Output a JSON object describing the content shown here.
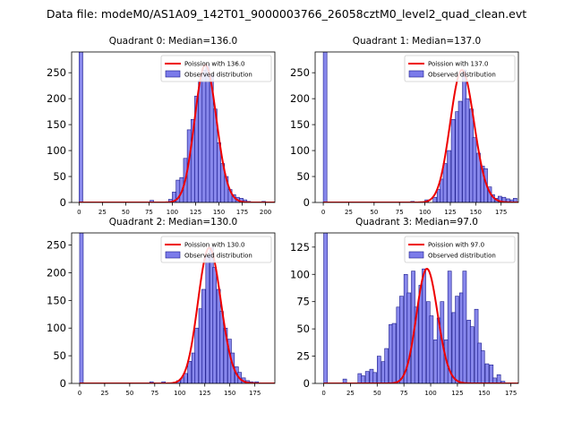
{
  "suptitle": "Data file: modeM0/AS1A09_142T01_9000003766_26058cztM0_level2_quad_clean.evt",
  "colors": {
    "bar_fill": "#7b7bea",
    "bar_edge": "#1a1a8c",
    "curve": "#ee0000"
  },
  "chart_data": [
    {
      "type": "bar",
      "title": "Quadrant 0: Median=136.0",
      "median": 136.0,
      "xlim": [
        -8,
        210
      ],
      "ylim": [
        0,
        290
      ],
      "xticks": [
        0,
        25,
        50,
        75,
        100,
        125,
        150,
        175,
        200
      ],
      "yticks": [
        0,
        50,
        100,
        150,
        200,
        250
      ],
      "bin_width": 4,
      "bins": [
        [
          0,
          290
        ],
        [
          76,
          4
        ],
        [
          88,
          1
        ],
        [
          96,
          6
        ],
        [
          100,
          20
        ],
        [
          104,
          43
        ],
        [
          108,
          48
        ],
        [
          112,
          85
        ],
        [
          116,
          140
        ],
        [
          120,
          160
        ],
        [
          124,
          205
        ],
        [
          128,
          235
        ],
        [
          132,
          255
        ],
        [
          136,
          265
        ],
        [
          140,
          245
        ],
        [
          144,
          180
        ],
        [
          148,
          115
        ],
        [
          152,
          75
        ],
        [
          156,
          50
        ],
        [
          160,
          25
        ],
        [
          164,
          15
        ],
        [
          168,
          10
        ],
        [
          172,
          8
        ],
        [
          176,
          5
        ],
        [
          180,
          2
        ],
        [
          196,
          2
        ]
      ],
      "legend": {
        "curve": "Poission with 136.0",
        "bars": "Observed distribution"
      }
    },
    {
      "type": "bar",
      "title": "Quadrant 1: Median=137.0",
      "median": 137.0,
      "xlim": [
        -8,
        192
      ],
      "ylim": [
        0,
        290
      ],
      "xticks": [
        0,
        25,
        50,
        75,
        100,
        125,
        150,
        175
      ],
      "yticks": [
        0,
        50,
        100,
        150,
        200,
        250
      ],
      "bin_width": 3.6,
      "bins": [
        [
          0,
          290
        ],
        [
          86,
          2
        ],
        [
          100,
          5
        ],
        [
          108,
          10
        ],
        [
          112,
          25
        ],
        [
          115,
          45
        ],
        [
          118,
          75
        ],
        [
          122,
          100
        ],
        [
          126,
          160
        ],
        [
          130,
          175
        ],
        [
          133,
          195
        ],
        [
          137,
          255
        ],
        [
          140,
          200
        ],
        [
          144,
          180
        ],
        [
          147,
          125
        ],
        [
          151,
          95
        ],
        [
          155,
          70
        ],
        [
          158,
          65
        ],
        [
          162,
          30
        ],
        [
          165,
          15
        ],
        [
          169,
          8
        ],
        [
          172,
          12
        ],
        [
          176,
          10
        ],
        [
          180,
          7
        ],
        [
          184,
          5
        ],
        [
          187,
          8
        ]
      ],
      "legend": {
        "curve": "Poission with 137.0",
        "bars": "Observed distribution"
      }
    },
    {
      "type": "bar",
      "title": "Quadrant 2: Median=130.0",
      "median": 130.0,
      "xlim": [
        -8,
        195
      ],
      "ylim": [
        0,
        272
      ],
      "xticks": [
        0,
        25,
        50,
        75,
        100,
        125,
        150,
        175
      ],
      "yticks": [
        0,
        50,
        100,
        150,
        200,
        250
      ],
      "bin_width": 3.6,
      "bins": [
        [
          0,
          272
        ],
        [
          70,
          3
        ],
        [
          82,
          3
        ],
        [
          97,
          5
        ],
        [
          101,
          10
        ],
        [
          104,
          18
        ],
        [
          108,
          40
        ],
        [
          112,
          55
        ],
        [
          115,
          100
        ],
        [
          119,
          135
        ],
        [
          122,
          170
        ],
        [
          126,
          230
        ],
        [
          130,
          245
        ],
        [
          133,
          210
        ],
        [
          137,
          170
        ],
        [
          140,
          130
        ],
        [
          144,
          100
        ],
        [
          148,
          80
        ],
        [
          151,
          55
        ],
        [
          155,
          30
        ],
        [
          158,
          20
        ],
        [
          162,
          10
        ],
        [
          166,
          5
        ],
        [
          170,
          3
        ],
        [
          175,
          3
        ]
      ],
      "legend": {
        "curve": "Poission with 130.0",
        "bars": "Observed distribution"
      }
    },
    {
      "type": "bar",
      "title": "Quadrant 3: Median=97.0",
      "median": 97.0,
      "xlim": [
        -8,
        182
      ],
      "ylim": [
        0,
        138
      ],
      "xticks": [
        0,
        25,
        50,
        75,
        100,
        125,
        150,
        175
      ],
      "yticks": [
        0,
        25,
        50,
        75,
        100,
        125
      ],
      "bin_width": 3.4,
      "bins": [
        [
          0,
          138
        ],
        [
          18,
          4
        ],
        [
          32,
          9
        ],
        [
          35,
          7
        ],
        [
          39,
          11
        ],
        [
          43,
          13
        ],
        [
          46,
          10
        ],
        [
          50,
          25
        ],
        [
          54,
          20
        ],
        [
          57,
          32
        ],
        [
          61,
          54
        ],
        [
          64,
          55
        ],
        [
          68,
          70
        ],
        [
          71,
          80
        ],
        [
          75,
          100
        ],
        [
          78,
          83
        ],
        [
          82,
          103
        ],
        [
          85,
          70
        ],
        [
          89,
          90
        ],
        [
          92,
          105
        ],
        [
          96,
          75
        ],
        [
          99,
          62
        ],
        [
          103,
          40
        ],
        [
          106,
          60
        ],
        [
          109,
          75
        ],
        [
          113,
          40
        ],
        [
          116,
          103
        ],
        [
          120,
          65
        ],
        [
          123,
          80
        ],
        [
          127,
          83
        ],
        [
          130,
          103
        ],
        [
          134,
          58
        ],
        [
          137,
          52
        ],
        [
          141,
          68
        ],
        [
          144,
          37
        ],
        [
          147,
          30
        ],
        [
          151,
          18
        ],
        [
          155,
          17
        ],
        [
          158,
          5
        ],
        [
          162,
          8
        ],
        [
          166,
          2
        ]
      ],
      "legend": {
        "curve": "Poission with 97.0",
        "bars": "Observed distribution"
      }
    }
  ]
}
